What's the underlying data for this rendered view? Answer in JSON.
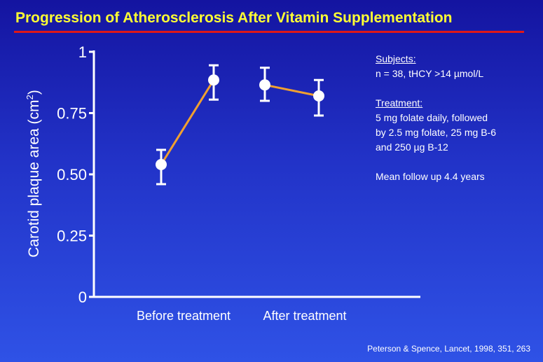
{
  "slide": {
    "title": "Progression of Atherosclerosis After Vitamin Supplementation",
    "citation": "Peterson & Spence, Lancet, 1998, 351, 263"
  },
  "notes": {
    "subjects_heading": "Subjects:",
    "subjects_text": "n = 38, tHCY >14 µmol/L",
    "treatment_heading": "Treatment:",
    "treatment_lines": [
      "5 mg folate daily, followed",
      "by 2.5 mg folate, 25 mg B-6",
      "and 250 µg B-12"
    ],
    "followup": "Mean follow up 4.4 years"
  },
  "chart_data": {
    "type": "line",
    "ylabel_main": "Carotid plaque area (cm",
    "ylabel_sup": "2",
    "ylabel_close": ")",
    "ylim": [
      0,
      1
    ],
    "yticks": [
      0,
      0.25,
      0.5,
      0.75,
      1
    ],
    "yticklabels": [
      "0",
      "0.25",
      "0.50",
      "0.75",
      "1"
    ],
    "categories": [
      "Before treatment",
      "After treatment"
    ],
    "line_color": "#f0a030",
    "marker_color": "#ffffff",
    "segments": [
      {
        "group": "Before treatment",
        "points": [
          {
            "y": 0.54,
            "err_low": 0.46,
            "err_high": 0.6
          },
          {
            "y": 0.885,
            "err_low": 0.805,
            "err_high": 0.945
          }
        ]
      },
      {
        "group": "After treatment",
        "points": [
          {
            "y": 0.865,
            "err_low": 0.8,
            "err_high": 0.935
          },
          {
            "y": 0.82,
            "err_low": 0.74,
            "err_high": 0.885
          }
        ]
      }
    ]
  }
}
